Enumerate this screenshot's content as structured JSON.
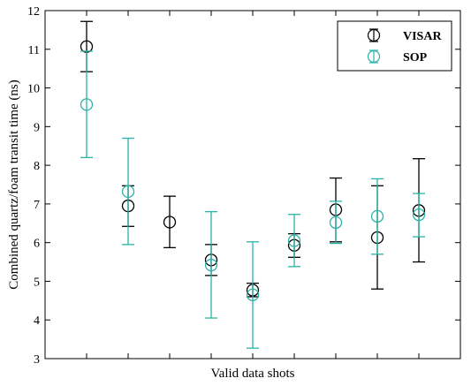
{
  "chart_data": {
    "type": "scatter",
    "xlabel": "Valid data shots",
    "ylabel": "Combined quartz/foam transit time (ns)",
    "xlim": [
      0,
      10
    ],
    "ylim": [
      3,
      12
    ],
    "yticks": [
      3,
      4,
      5,
      6,
      7,
      8,
      9,
      10,
      11,
      12
    ],
    "xticks": [
      1,
      2,
      3,
      4,
      5,
      6,
      7,
      8,
      9
    ],
    "grid": false,
    "legend_position": "top-right",
    "series": [
      {
        "name": "VISAR",
        "color": "#000000",
        "points": [
          {
            "x": 1,
            "y": 11.07,
            "lower": 10.42,
            "upper": 11.72
          },
          {
            "x": 2,
            "y": 6.95,
            "lower": 6.42,
            "upper": 7.47
          },
          {
            "x": 3,
            "y": 6.53,
            "lower": 5.87,
            "upper": 7.2
          },
          {
            "x": 4,
            "y": 5.55,
            "lower": 5.15,
            "upper": 5.95
          },
          {
            "x": 5,
            "y": 4.77,
            "lower": 4.6,
            "upper": 4.95
          },
          {
            "x": 6,
            "y": 5.93,
            "lower": 5.62,
            "upper": 6.23
          },
          {
            "x": 7,
            "y": 6.85,
            "lower": 6.02,
            "upper": 7.67
          },
          {
            "x": 8,
            "y": 6.13,
            "lower": 4.8,
            "upper": 7.47
          },
          {
            "x": 9,
            "y": 6.83,
            "lower": 5.5,
            "upper": 8.17
          }
        ]
      },
      {
        "name": "SOP",
        "color": "#2ab3a6",
        "points": [
          {
            "x": 1,
            "y": 9.57,
            "lower": 8.2,
            "upper": 10.95
          },
          {
            "x": 2,
            "y": 7.32,
            "lower": 5.95,
            "upper": 8.7
          },
          {
            "x": 4,
            "y": 5.42,
            "lower": 4.05,
            "upper": 6.8
          },
          {
            "x": 5,
            "y": 4.65,
            "lower": 3.27,
            "upper": 6.02
          },
          {
            "x": 6,
            "y": 6.05,
            "lower": 5.38,
            "upper": 6.73
          },
          {
            "x": 7,
            "y": 6.52,
            "lower": 5.98,
            "upper": 7.07
          },
          {
            "x": 8,
            "y": 6.68,
            "lower": 5.7,
            "upper": 7.65
          },
          {
            "x": 9,
            "y": 6.72,
            "lower": 6.15,
            "upper": 7.27
          }
        ]
      }
    ]
  }
}
